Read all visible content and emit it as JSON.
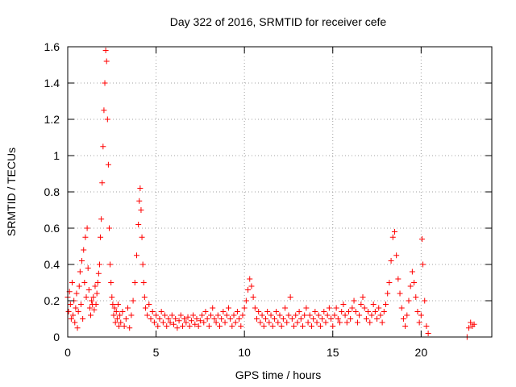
{
  "chart_data": {
    "type": "scatter",
    "title": "Day 322 of 2016, SRMTID for receiver cefe",
    "xlabel": "GPS time / hours",
    "ylabel": "SRMTID / TECUs",
    "xlim": [
      0,
      24
    ],
    "ylim": [
      0,
      1.6
    ],
    "grid": true,
    "marker": "+",
    "marker_color": "#ff0000",
    "x_ticks": [
      {
        "value": 0,
        "label": "0"
      },
      {
        "value": 5,
        "label": "5"
      },
      {
        "value": 10,
        "label": "10"
      },
      {
        "value": 15,
        "label": "15"
      },
      {
        "value": 20,
        "label": "20"
      }
    ],
    "y_ticks": [
      {
        "value": 0,
        "label": "0"
      },
      {
        "value": 0.2,
        "label": "0.2"
      },
      {
        "value": 0.4,
        "label": "0.4"
      },
      {
        "value": 0.6,
        "label": "0.6"
      },
      {
        "value": 0.8,
        "label": "0.8"
      },
      {
        "value": 1.0,
        "label": "1"
      },
      {
        "value": 1.2,
        "label": "1.2"
      },
      {
        "value": 1.4,
        "label": "1.4"
      },
      {
        "value": 1.6,
        "label": "1.6"
      }
    ],
    "series": [
      {
        "name": "SRMTID",
        "points": [
          [
            0.0,
            0.22
          ],
          [
            0.05,
            0.14
          ],
          [
            0.1,
            0.25
          ],
          [
            0.15,
            0.18
          ],
          [
            0.2,
            0.1
          ],
          [
            0.25,
            0.3
          ],
          [
            0.3,
            0.12
          ],
          [
            0.35,
            0.2
          ],
          [
            0.4,
            0.08
          ],
          [
            0.45,
            0.16
          ],
          [
            0.5,
            0.24
          ],
          [
            0.55,
            0.05
          ],
          [
            0.6,
            0.14
          ],
          [
            0.65,
            0.28
          ],
          [
            0.7,
            0.36
          ],
          [
            0.75,
            0.18
          ],
          [
            0.8,
            0.42
          ],
          [
            0.85,
            0.1
          ],
          [
            0.9,
            0.48
          ],
          [
            0.95,
            0.3
          ],
          [
            1.0,
            0.55
          ],
          [
            1.05,
            0.22
          ],
          [
            1.1,
            0.6
          ],
          [
            1.15,
            0.38
          ],
          [
            1.2,
            0.26
          ],
          [
            1.25,
            0.16
          ],
          [
            1.3,
            0.12
          ],
          [
            1.35,
            0.2
          ],
          [
            1.4,
            0.18
          ],
          [
            1.45,
            0.22
          ],
          [
            1.5,
            0.15
          ],
          [
            1.55,
            0.28
          ],
          [
            1.6,
            0.18
          ],
          [
            1.65,
            0.24
          ],
          [
            1.7,
            0.3
          ],
          [
            1.75,
            0.35
          ],
          [
            1.8,
            0.4
          ],
          [
            1.85,
            0.55
          ],
          [
            1.9,
            0.65
          ],
          [
            1.95,
            0.85
          ],
          [
            2.0,
            1.05
          ],
          [
            2.05,
            1.25
          ],
          [
            2.1,
            1.4
          ],
          [
            2.15,
            1.58
          ],
          [
            2.2,
            1.52
          ],
          [
            2.25,
            1.2
          ],
          [
            2.3,
            0.95
          ],
          [
            2.35,
            0.6
          ],
          [
            2.4,
            0.4
          ],
          [
            2.45,
            0.3
          ],
          [
            2.5,
            0.22
          ],
          [
            2.55,
            0.18
          ],
          [
            2.6,
            0.12
          ],
          [
            2.65,
            0.16
          ],
          [
            2.7,
            0.08
          ],
          [
            2.75,
            0.14
          ],
          [
            2.8,
            0.1
          ],
          [
            2.85,
            0.18
          ],
          [
            2.9,
            0.06
          ],
          [
            2.95,
            0.12
          ],
          [
            3.0,
            0.08
          ],
          [
            3.1,
            0.14
          ],
          [
            3.2,
            0.06
          ],
          [
            3.3,
            0.1
          ],
          [
            3.4,
            0.16
          ],
          [
            3.5,
            0.05
          ],
          [
            3.6,
            0.12
          ],
          [
            3.7,
            0.2
          ],
          [
            3.8,
            0.3
          ],
          [
            3.9,
            0.45
          ],
          [
            4.0,
            0.62
          ],
          [
            4.05,
            0.75
          ],
          [
            4.1,
            0.82
          ],
          [
            4.15,
            0.7
          ],
          [
            4.2,
            0.55
          ],
          [
            4.25,
            0.4
          ],
          [
            4.3,
            0.3
          ],
          [
            4.35,
            0.22
          ],
          [
            4.4,
            0.16
          ],
          [
            4.5,
            0.12
          ],
          [
            4.6,
            0.18
          ],
          [
            4.7,
            0.1
          ],
          [
            4.8,
            0.14
          ],
          [
            4.9,
            0.08
          ],
          [
            5.0,
            0.12
          ],
          [
            5.1,
            0.06
          ],
          [
            5.2,
            0.1
          ],
          [
            5.3,
            0.14
          ],
          [
            5.4,
            0.08
          ],
          [
            5.5,
            0.12
          ],
          [
            5.6,
            0.06
          ],
          [
            5.7,
            0.1
          ],
          [
            5.8,
            0.08
          ],
          [
            5.9,
            0.12
          ],
          [
            6.0,
            0.07
          ],
          [
            6.1,
            0.1
          ],
          [
            6.2,
            0.05
          ],
          [
            6.3,
            0.09
          ],
          [
            6.4,
            0.12
          ],
          [
            6.5,
            0.06
          ],
          [
            6.6,
            0.1
          ],
          [
            6.7,
            0.08
          ],
          [
            6.8,
            0.11
          ],
          [
            6.9,
            0.06
          ],
          [
            7.0,
            0.09
          ],
          [
            7.1,
            0.12
          ],
          [
            7.2,
            0.07
          ],
          [
            7.3,
            0.1
          ],
          [
            7.4,
            0.06
          ],
          [
            7.5,
            0.09
          ],
          [
            7.6,
            0.12
          ],
          [
            7.7,
            0.08
          ],
          [
            7.8,
            0.14
          ],
          [
            7.9,
            0.1
          ],
          [
            8.0,
            0.06
          ],
          [
            8.1,
            0.12
          ],
          [
            8.2,
            0.16
          ],
          [
            8.3,
            0.1
          ],
          [
            8.4,
            0.08
          ],
          [
            8.5,
            0.12
          ],
          [
            8.6,
            0.06
          ],
          [
            8.7,
            0.1
          ],
          [
            8.8,
            0.14
          ],
          [
            8.9,
            0.08
          ],
          [
            9.0,
            0.12
          ],
          [
            9.1,
            0.16
          ],
          [
            9.2,
            0.1
          ],
          [
            9.3,
            0.06
          ],
          [
            9.4,
            0.12
          ],
          [
            9.5,
            0.08
          ],
          [
            9.6,
            0.14
          ],
          [
            9.7,
            0.1
          ],
          [
            9.8,
            0.06
          ],
          [
            9.9,
            0.12
          ],
          [
            10.0,
            0.16
          ],
          [
            10.1,
            0.2
          ],
          [
            10.2,
            0.26
          ],
          [
            10.3,
            0.32
          ],
          [
            10.4,
            0.28
          ],
          [
            10.5,
            0.22
          ],
          [
            10.6,
            0.16
          ],
          [
            10.7,
            0.1
          ],
          [
            10.8,
            0.14
          ],
          [
            10.9,
            0.08
          ],
          [
            11.0,
            0.12
          ],
          [
            11.1,
            0.06
          ],
          [
            11.2,
            0.1
          ],
          [
            11.3,
            0.14
          ],
          [
            11.4,
            0.08
          ],
          [
            11.5,
            0.12
          ],
          [
            11.6,
            0.06
          ],
          [
            11.7,
            0.1
          ],
          [
            11.8,
            0.14
          ],
          [
            11.9,
            0.08
          ],
          [
            12.0,
            0.12
          ],
          [
            12.1,
            0.06
          ],
          [
            12.2,
            0.1
          ],
          [
            12.3,
            0.16
          ],
          [
            12.4,
            0.08
          ],
          [
            12.5,
            0.12
          ],
          [
            12.6,
            0.22
          ],
          [
            12.7,
            0.1
          ],
          [
            12.8,
            0.06
          ],
          [
            12.9,
            0.12
          ],
          [
            13.0,
            0.08
          ],
          [
            13.1,
            0.14
          ],
          [
            13.2,
            0.1
          ],
          [
            13.3,
            0.06
          ],
          [
            13.4,
            0.12
          ],
          [
            13.5,
            0.16
          ],
          [
            13.6,
            0.08
          ],
          [
            13.7,
            0.12
          ],
          [
            13.8,
            0.06
          ],
          [
            13.9,
            0.1
          ],
          [
            14.0,
            0.14
          ],
          [
            14.1,
            0.08
          ],
          [
            14.2,
            0.12
          ],
          [
            14.3,
            0.06
          ],
          [
            14.4,
            0.1
          ],
          [
            14.5,
            0.14
          ],
          [
            14.6,
            0.08
          ],
          [
            14.7,
            0.12
          ],
          [
            14.8,
            0.16
          ],
          [
            14.9,
            0.1
          ],
          [
            15.0,
            0.06
          ],
          [
            15.1,
            0.12
          ],
          [
            15.2,
            0.16
          ],
          [
            15.3,
            0.1
          ],
          [
            15.4,
            0.08
          ],
          [
            15.5,
            0.14
          ],
          [
            15.6,
            0.18
          ],
          [
            15.7,
            0.12
          ],
          [
            15.8,
            0.08
          ],
          [
            15.9,
            0.14
          ],
          [
            16.0,
            0.1
          ],
          [
            16.1,
            0.16
          ],
          [
            16.2,
            0.2
          ],
          [
            16.3,
            0.14
          ],
          [
            16.4,
            0.08
          ],
          [
            16.5,
            0.12
          ],
          [
            16.6,
            0.18
          ],
          [
            16.7,
            0.22
          ],
          [
            16.8,
            0.16
          ],
          [
            16.9,
            0.1
          ],
          [
            17.0,
            0.14
          ],
          [
            17.1,
            0.08
          ],
          [
            17.2,
            0.12
          ],
          [
            17.3,
            0.18
          ],
          [
            17.4,
            0.14
          ],
          [
            17.5,
            0.1
          ],
          [
            17.6,
            0.16
          ],
          [
            17.7,
            0.12
          ],
          [
            17.8,
            0.08
          ],
          [
            17.9,
            0.14
          ],
          [
            18.0,
            0.18
          ],
          [
            18.1,
            0.24
          ],
          [
            18.2,
            0.3
          ],
          [
            18.3,
            0.42
          ],
          [
            18.4,
            0.55
          ],
          [
            18.5,
            0.58
          ],
          [
            18.6,
            0.45
          ],
          [
            18.7,
            0.32
          ],
          [
            18.8,
            0.24
          ],
          [
            18.9,
            0.16
          ],
          [
            19.0,
            0.1
          ],
          [
            19.1,
            0.06
          ],
          [
            19.2,
            0.12
          ],
          [
            19.3,
            0.2
          ],
          [
            19.4,
            0.28
          ],
          [
            19.5,
            0.36
          ],
          [
            19.6,
            0.3
          ],
          [
            19.7,
            0.22
          ],
          [
            19.8,
            0.14
          ],
          [
            19.9,
            0.08
          ],
          [
            20.0,
            0.12
          ],
          [
            20.05,
            0.54
          ],
          [
            20.1,
            0.4
          ],
          [
            20.2,
            0.2
          ],
          [
            20.3,
            0.06
          ],
          [
            20.4,
            0.02
          ],
          [
            22.6,
            0.0
          ],
          [
            22.7,
            0.05
          ],
          [
            22.8,
            0.08
          ],
          [
            22.9,
            0.06
          ],
          [
            23.0,
            0.07
          ]
        ]
      }
    ]
  }
}
